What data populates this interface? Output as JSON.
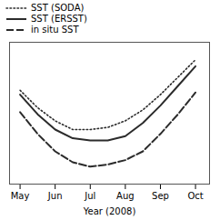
{
  "chart_data": {
    "type": "line",
    "xlabel": "Year (2008)",
    "x": [
      0,
      0.5,
      1.0,
      1.5,
      2.0,
      2.5,
      3.0,
      3.5,
      4.0,
      4.5,
      5.0
    ],
    "series": [
      {
        "name": "SST (SODA)",
        "color": "#2b2b2b",
        "line_style": "dotted",
        "values": [
          0.68,
          0.6,
          0.54,
          0.5,
          0.5,
          0.51,
          0.54,
          0.59,
          0.66,
          0.74,
          0.82
        ]
      },
      {
        "name": "SST (ERSST)",
        "color": "#2b2b2b",
        "line_style": "solid",
        "values": [
          0.66,
          0.57,
          0.5,
          0.46,
          0.45,
          0.45,
          0.47,
          0.53,
          0.61,
          0.7,
          0.79
        ]
      },
      {
        "name": "in situ SST",
        "color": "#2b2b2b",
        "line_style": "dashed",
        "values": [
          0.58,
          0.48,
          0.4,
          0.35,
          0.33,
          0.34,
          0.36,
          0.4,
          0.48,
          0.57,
          0.67
        ]
      }
    ],
    "xlim": [
      -0.3,
      5.4
    ],
    "xticks": [
      {
        "value": 0,
        "label": "May"
      },
      {
        "value": 1,
        "label": "Jun"
      },
      {
        "value": 2,
        "label": "Jul"
      },
      {
        "value": 3,
        "label": "Aug"
      },
      {
        "value": 4,
        "label": "Sep"
      },
      {
        "value": 5,
        "label": "Oct"
      }
    ],
    "ylim": [
      0.25,
      0.9
    ],
    "yticks": [],
    "tick_labels": "x",
    "legend": "upper left",
    "grid": false
  }
}
